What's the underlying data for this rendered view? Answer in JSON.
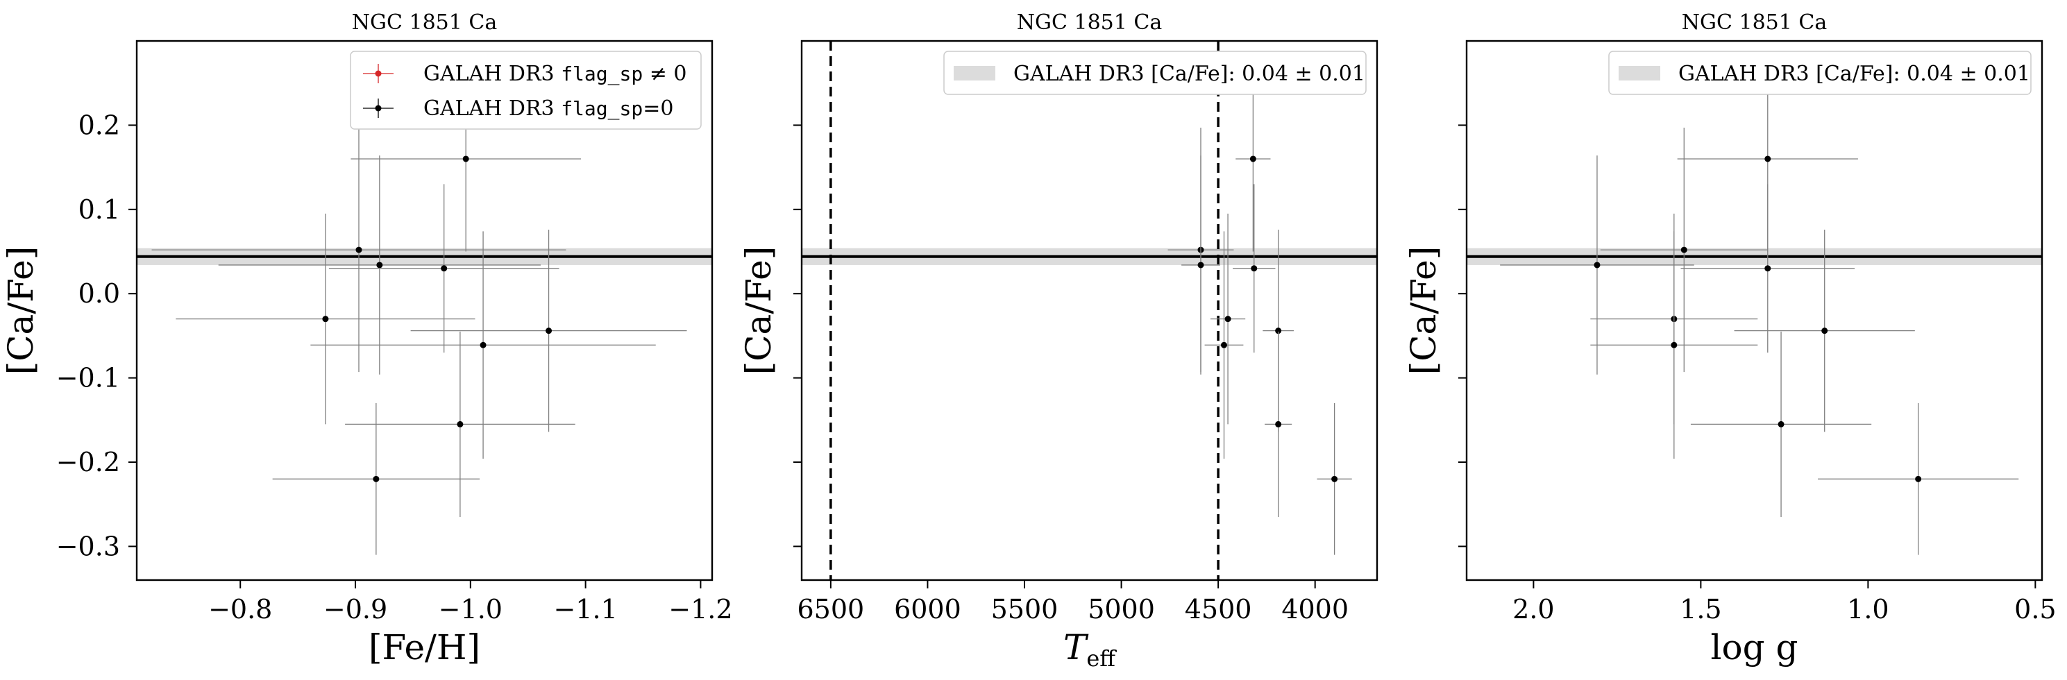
{
  "chart_data": [
    {
      "type": "scatter",
      "title": "NGC 1851 Ca",
      "xlabel": "[Fe/H]",
      "ylabel": "[Ca/Fe]",
      "xlim": [
        -0.71,
        -1.21
      ],
      "ylim": [
        -0.34,
        0.3
      ],
      "x_inverted": true,
      "x_ticks": [
        -0.8,
        -0.9,
        -1.0,
        -1.1,
        -1.2
      ],
      "x_tick_labels": [
        "−0.8",
        "−0.9",
        "−1.0",
        "−1.1",
        "−1.2"
      ],
      "y_ticks": [
        0.2,
        0.1,
        0.0,
        -0.1,
        -0.2,
        -0.3
      ],
      "y_tick_labels": [
        "0.2",
        "0.1",
        "0.0",
        "−0.1",
        "−0.2",
        "−0.3"
      ],
      "mean_line": 0.044,
      "mean_band": [
        0.034,
        0.054
      ],
      "legend_position": "top-right",
      "legend": [
        {
          "label_prefix": "GALAH DR3 ",
          "label_code": "flag_sp",
          "label_suffix": " ≠ 0",
          "color": "#d62728"
        },
        {
          "label_prefix": "GALAH DR3 ",
          "label_code": "flag_sp",
          "label_suffix": "=0",
          "color": "#000000"
        }
      ],
      "series": [
        {
          "name": "GALAH DR3 flag_sp=0",
          "points": [
            {
              "x": -0.903,
              "y": 0.052,
              "xerr": 0.18,
              "yerr": 0.145
            },
            {
              "x": -0.921,
              "y": 0.034,
              "xerr": 0.14,
              "yerr": 0.13
            },
            {
              "x": -0.996,
              "y": 0.16,
              "xerr": 0.1,
              "yerr": 0.11
            },
            {
              "x": -0.977,
              "y": 0.03,
              "xerr": 0.1,
              "yerr": 0.1
            },
            {
              "x": -0.874,
              "y": -0.03,
              "xerr": 0.13,
              "yerr": 0.125
            },
            {
              "x": -1.068,
              "y": -0.044,
              "xerr": 0.12,
              "yerr": 0.12
            },
            {
              "x": -1.011,
              "y": -0.061,
              "xerr": 0.15,
              "yerr": 0.135
            },
            {
              "x": -0.991,
              "y": -0.155,
              "xerr": 0.1,
              "yerr": 0.11
            },
            {
              "x": -0.918,
              "y": -0.22,
              "xerr": 0.09,
              "yerr": 0.09
            }
          ]
        }
      ]
    },
    {
      "type": "scatter",
      "title": "NGC 1851 Ca",
      "xlabel_main": "T",
      "xlabel_sub": "eff",
      "ylabel": "[Ca/Fe]",
      "xlim": [
        6650,
        3680
      ],
      "ylim": [
        -0.34,
        0.3
      ],
      "x_inverted": true,
      "x_ticks": [
        6500,
        6000,
        5500,
        5000,
        4500,
        4000
      ],
      "x_tick_labels": [
        "6500",
        "6000",
        "5500",
        "5000",
        "4500",
        "4000"
      ],
      "y_ticks": [
        0.2,
        0.1,
        0.0,
        -0.1,
        -0.2,
        -0.3
      ],
      "vlines": [
        6500,
        4500
      ],
      "mean_line": 0.044,
      "mean_band": [
        0.034,
        0.054
      ],
      "legend_position": "top-right",
      "legend": [
        {
          "label_prefix": "GALAH DR3 [Ca/Fe]: ",
          "label_value": "0.04 ± 0.01",
          "color": "#dcdcdc"
        }
      ],
      "series": [
        {
          "name": "GALAH DR3 flag_sp=0",
          "points": [
            {
              "x": 4590,
              "y": 0.052,
              "xerr": 170,
              "yerr": 0.145
            },
            {
              "x": 4590,
              "y": 0.034,
              "xerr": 100,
              "yerr": 0.13
            },
            {
              "x": 4320,
              "y": 0.16,
              "xerr": 90,
              "yerr": 0.11
            },
            {
              "x": 4315,
              "y": 0.03,
              "xerr": 110,
              "yerr": 0.1
            },
            {
              "x": 4450,
              "y": -0.03,
              "xerr": 90,
              "yerr": 0.125
            },
            {
              "x": 4190,
              "y": -0.044,
              "xerr": 80,
              "yerr": 0.12
            },
            {
              "x": 4470,
              "y": -0.061,
              "xerr": 100,
              "yerr": 0.135
            },
            {
              "x": 4190,
              "y": -0.155,
              "xerr": 70,
              "yerr": 0.11
            },
            {
              "x": 3900,
              "y": -0.22,
              "xerr": 90,
              "yerr": 0.09
            }
          ]
        }
      ]
    },
    {
      "type": "scatter",
      "title": "NGC 1851 Ca",
      "xlabel": "log g",
      "ylabel": "[Ca/Fe]",
      "xlim": [
        2.2,
        0.48
      ],
      "ylim": [
        -0.34,
        0.3
      ],
      "x_inverted": true,
      "x_ticks": [
        2.0,
        1.5,
        1.0,
        0.5
      ],
      "x_tick_labels": [
        "2.0",
        "1.5",
        "1.0",
        "0.5"
      ],
      "y_ticks": [
        0.2,
        0.1,
        0.0,
        -0.1,
        -0.2,
        -0.3
      ],
      "mean_line": 0.044,
      "mean_band": [
        0.034,
        0.054
      ],
      "legend_position": "top-right",
      "legend": [
        {
          "label_prefix": "GALAH DR3 [Ca/Fe]: ",
          "label_value": "0.04 ± 0.01",
          "color": "#dcdcdc"
        }
      ],
      "series": [
        {
          "name": "GALAH DR3 flag_sp=0",
          "points": [
            {
              "x": 1.55,
              "y": 0.052,
              "xerr": 0.25,
              "yerr": 0.145
            },
            {
              "x": 1.81,
              "y": 0.034,
              "xerr": 0.29,
              "yerr": 0.13
            },
            {
              "x": 1.3,
              "y": 0.16,
              "xerr": 0.27,
              "yerr": 0.11
            },
            {
              "x": 1.3,
              "y": 0.03,
              "xerr": 0.26,
              "yerr": 0.1
            },
            {
              "x": 1.58,
              "y": -0.03,
              "xerr": 0.25,
              "yerr": 0.125
            },
            {
              "x": 1.13,
              "y": -0.044,
              "xerr": 0.27,
              "yerr": 0.12
            },
            {
              "x": 1.58,
              "y": -0.061,
              "xerr": 0.25,
              "yerr": 0.135
            },
            {
              "x": 1.26,
              "y": -0.155,
              "xerr": 0.27,
              "yerr": 0.11
            },
            {
              "x": 0.85,
              "y": -0.22,
              "xerr": 0.3,
              "yerr": 0.09
            }
          ]
        }
      ]
    }
  ]
}
